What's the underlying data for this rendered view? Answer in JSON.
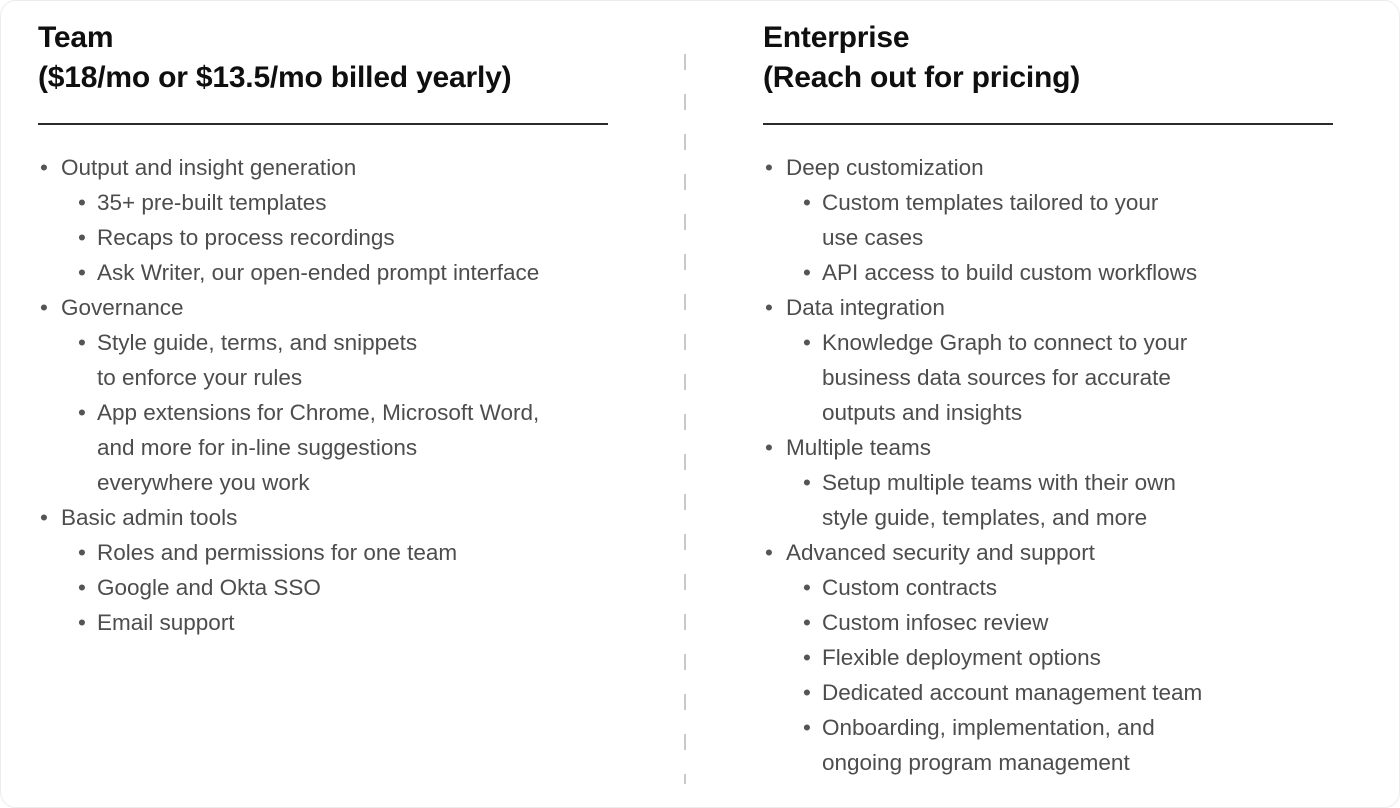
{
  "colors": {
    "background": "#ffffff",
    "heading_text": "#0f0f0f",
    "body_text": "#4d4d4d",
    "rule": "#2b2b2b",
    "divider_dash": "#c9c9c9"
  },
  "columns": [
    {
      "title": "Team",
      "subtitle": "($18/mo or $13.5/mo billed yearly)",
      "features": [
        {
          "label": "Output and insight generation",
          "sub": [
            "35+ pre-built templates",
            "Recaps to process recordings",
            "Ask Writer, our open-ended prompt interface"
          ]
        },
        {
          "label": "Governance",
          "sub": [
            "Style guide, terms, and snippets\nto enforce your rules",
            "App extensions for Chrome, Microsoft Word,\nand more for in-line suggestions\neverywhere you work"
          ]
        },
        {
          "label": "Basic admin tools",
          "sub": [
            "Roles and permissions for one team",
            "Google and Okta SSO",
            "Email support"
          ]
        }
      ]
    },
    {
      "title": "Enterprise",
      "subtitle": "(Reach out for pricing)",
      "features": [
        {
          "label": "Deep customization",
          "sub": [
            "Custom templates tailored to your\nuse cases",
            "API access to build custom workflows"
          ]
        },
        {
          "label": "Data integration",
          "sub": [
            "Knowledge Graph to connect to your\nbusiness data sources for accurate\noutputs and insights"
          ]
        },
        {
          "label": "Multiple teams",
          "sub": [
            "Setup multiple teams with their own\nstyle guide, templates, and more"
          ]
        },
        {
          "label": "Advanced security and support",
          "sub": [
            "Custom contracts",
            "Custom infosec review",
            "Flexible deployment options",
            "Dedicated account management team",
            "Onboarding, implementation, and\nongoing program management"
          ]
        }
      ]
    }
  ]
}
